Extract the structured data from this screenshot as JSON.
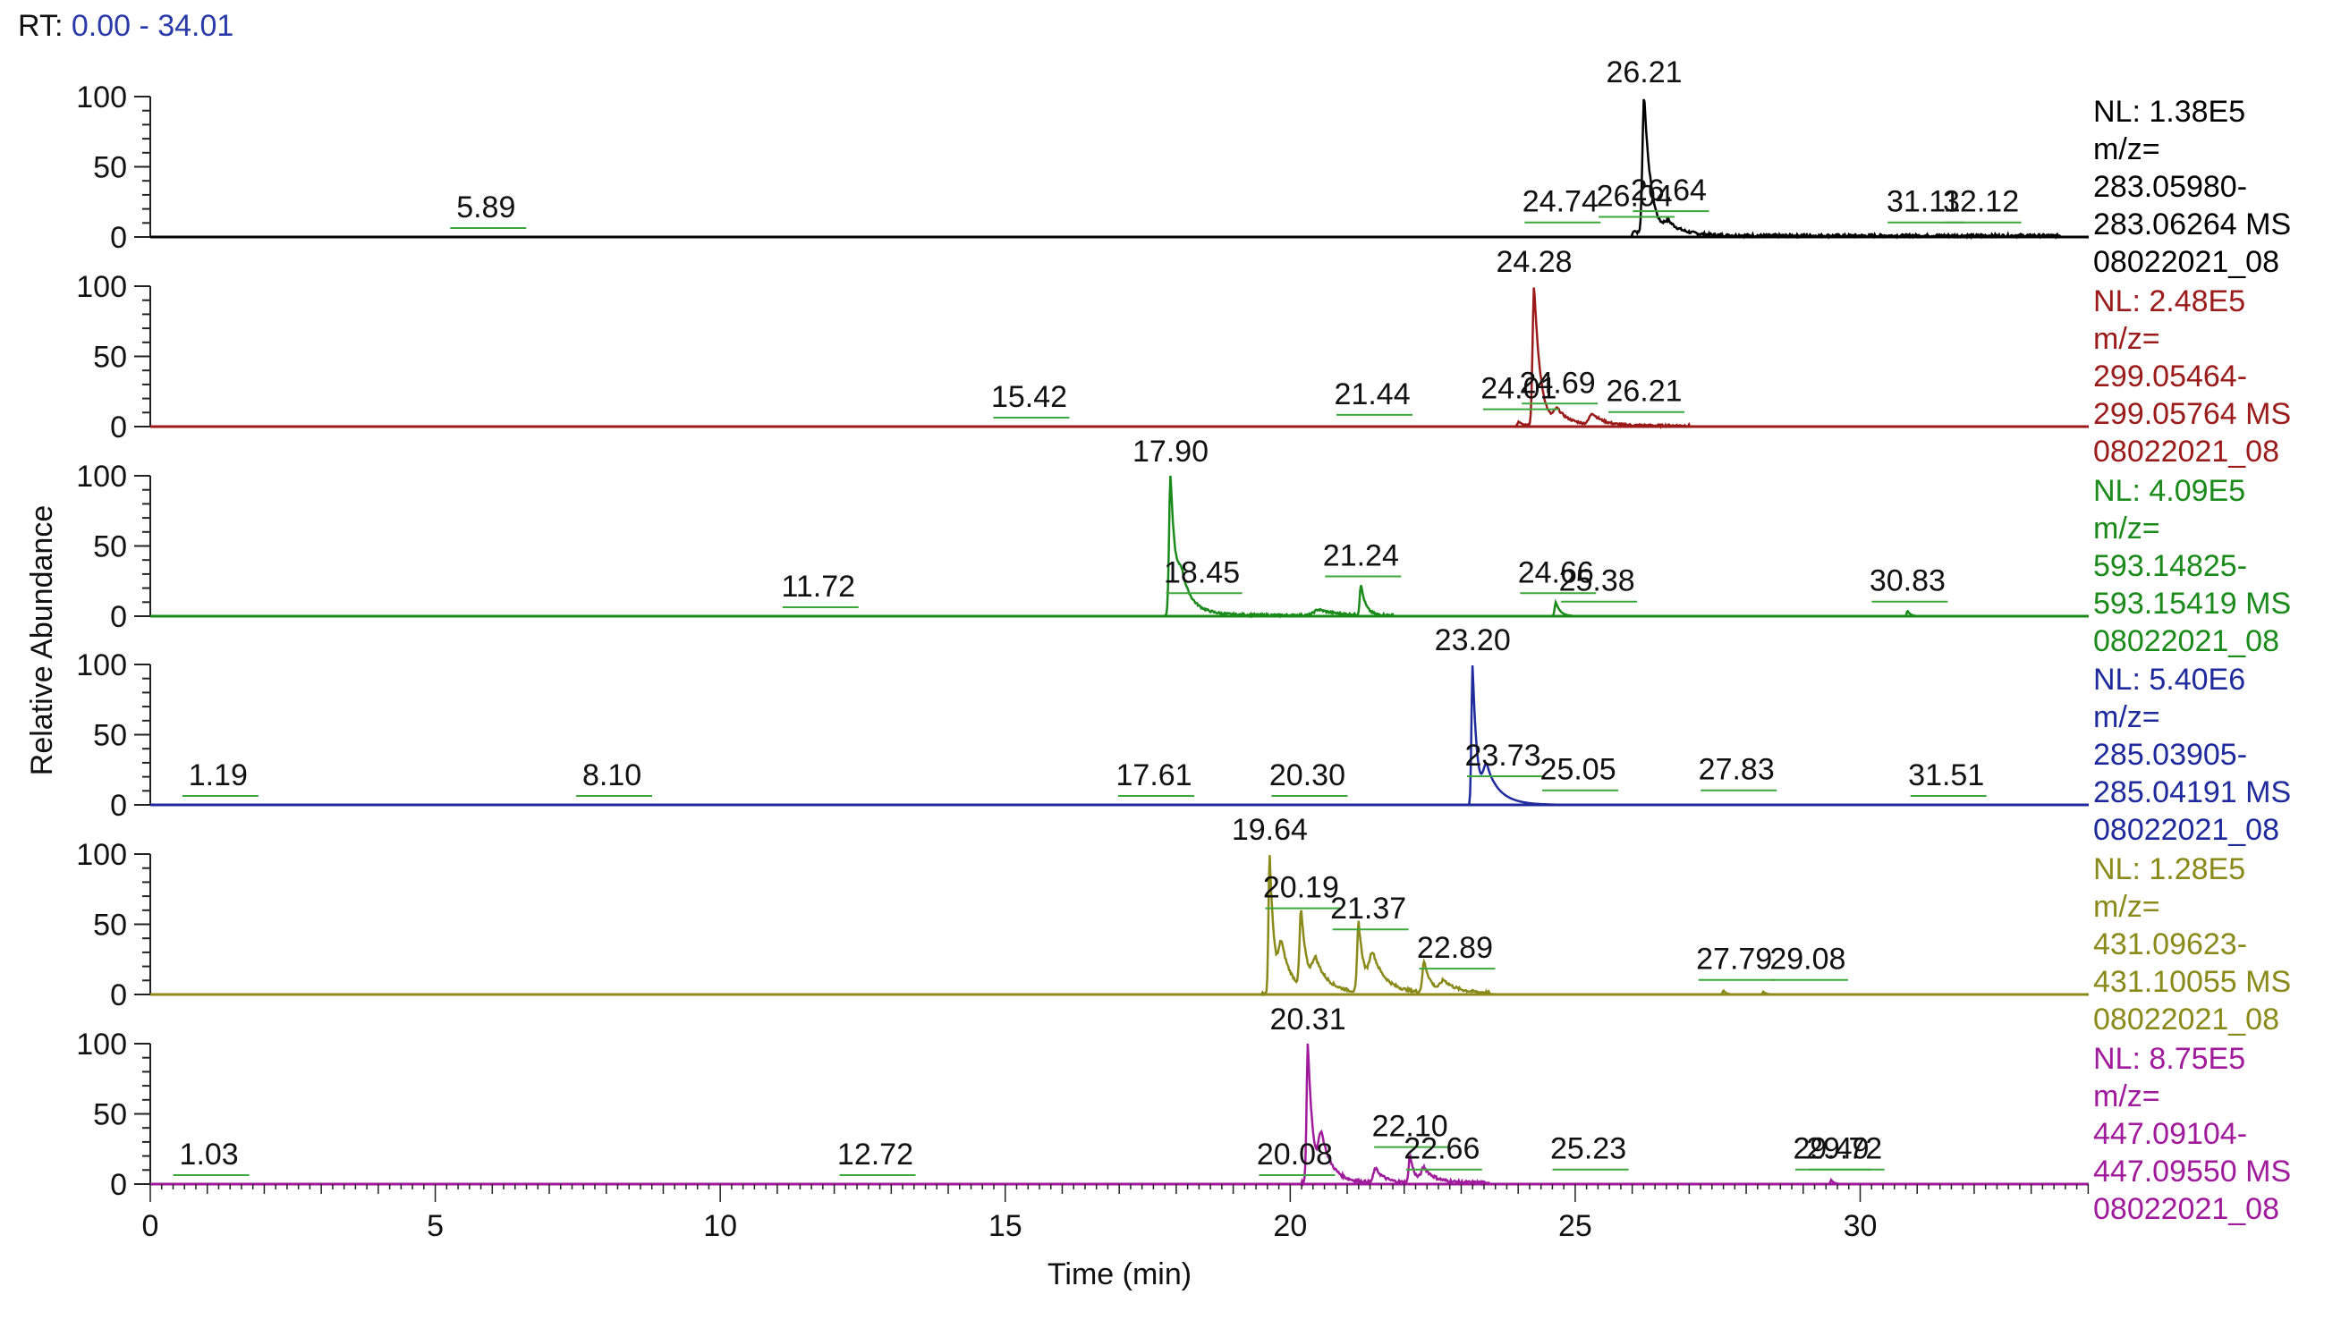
{
  "rt": {
    "label": "RT:",
    "range": "0.00 - 34.01"
  },
  "chart_data": {
    "type": "line",
    "title": "RT: 0.00 - 34.01",
    "xlabel": "Time (min)",
    "ylabel": "Relative Abundance",
    "xlim": [
      0,
      34.01
    ],
    "ylim": [
      0,
      100
    ],
    "x_ticks": [
      0,
      5,
      10,
      15,
      20,
      25,
      30
    ],
    "y_ticks": [
      0,
      50,
      100
    ],
    "panels": [
      {
        "color": "#000000",
        "info": [
          "NL: 1.38E5",
          "m/z=",
          "283.05980-",
          "283.06264  MS",
          "08022021_08"
        ],
        "peaks": [
          [
            26.21,
            100,
            0.12
          ],
          [
            26.64,
            8,
            0.3
          ],
          [
            26.04,
            4,
            0.1
          ]
        ],
        "baseline_noise": [
          [
            26.0,
            33.5,
            2
          ]
        ],
        "labels": [
          {
            "x": 26.21,
            "y": 100,
            "text": "26.21",
            "main": true
          },
          {
            "x": 5.89,
            "y": 0,
            "text": "5.89"
          },
          {
            "x": 24.74,
            "y": 4,
            "text": "24.74"
          },
          {
            "x": 26.04,
            "y": 8,
            "text": "26.04"
          },
          {
            "x": 26.64,
            "y": 12,
            "text": "26.64"
          },
          {
            "x": 31.11,
            "y": 4,
            "text": "31.11"
          },
          {
            "x": 32.12,
            "y": 4,
            "text": "32.12"
          }
        ]
      },
      {
        "color": "#9b1b1b",
        "info": [
          "NL: 2.48E5",
          "m/z=",
          "299.05464-",
          "299.05764  MS",
          "08022021_08"
        ],
        "peaks": [
          [
            24.28,
            100,
            0.11
          ],
          [
            24.69,
            10,
            0.25
          ],
          [
            25.3,
            8,
            0.2
          ],
          [
            24.01,
            3,
            0.1
          ]
        ],
        "baseline_noise": [
          [
            24.0,
            27.0,
            1.5
          ]
        ],
        "labels": [
          {
            "x": 24.28,
            "y": 100,
            "text": "24.28",
            "main": true
          },
          {
            "x": 15.42,
            "y": 0,
            "text": "15.42"
          },
          {
            "x": 21.44,
            "y": 2,
            "text": "21.44"
          },
          {
            "x": 24.01,
            "y": 6,
            "text": "24.01"
          },
          {
            "x": 24.69,
            "y": 10,
            "text": "24.69"
          },
          {
            "x": 26.21,
            "y": 4,
            "text": "26.21"
          }
        ]
      },
      {
        "color": "#1a8a1a",
        "info": [
          "NL: 4.09E5",
          "m/z=",
          "593.14825-",
          "593.15419  MS",
          "08022021_08"
        ],
        "peaks": [
          [
            17.9,
            100,
            0.1
          ],
          [
            18.1,
            20,
            0.25
          ],
          [
            21.24,
            22,
            0.08
          ],
          [
            24.66,
            10,
            0.08
          ],
          [
            20.5,
            4,
            0.3
          ],
          [
            30.83,
            4,
            0.05
          ]
        ],
        "baseline_noise": [
          [
            17.8,
            21.8,
            1.5
          ]
        ],
        "labels": [
          {
            "x": 17.9,
            "y": 100,
            "text": "17.90",
            "main": true
          },
          {
            "x": 11.72,
            "y": 0,
            "text": "11.72"
          },
          {
            "x": 18.45,
            "y": 10,
            "text": "18.45"
          },
          {
            "x": 21.24,
            "y": 22,
            "text": "21.24"
          },
          {
            "x": 24.66,
            "y": 10,
            "text": "24.66"
          },
          {
            "x": 25.38,
            "y": 4,
            "text": "25.38"
          },
          {
            "x": 30.83,
            "y": 4,
            "text": "30.83"
          }
        ]
      },
      {
        "color": "#1f2a9c",
        "info": [
          "NL: 5.40E6",
          "m/z=",
          "285.03905-",
          "285.04191  MS",
          "08022021_08"
        ],
        "peaks": [
          [
            23.2,
            100,
            0.08
          ],
          [
            23.45,
            25,
            0.25
          ]
        ],
        "baseline_noise": [],
        "labels": [
          {
            "x": 23.2,
            "y": 100,
            "text": "23.20",
            "main": true
          },
          {
            "x": 1.19,
            "y": 0,
            "text": "1.19"
          },
          {
            "x": 8.1,
            "y": 0,
            "text": "8.10"
          },
          {
            "x": 17.61,
            "y": 0,
            "text": "17.61"
          },
          {
            "x": 20.3,
            "y": 0,
            "text": "20.30"
          },
          {
            "x": 23.73,
            "y": 14,
            "text": "23.73"
          },
          {
            "x": 25.05,
            "y": 4,
            "text": "25.05"
          },
          {
            "x": 27.83,
            "y": 4,
            "text": "27.83"
          },
          {
            "x": 31.51,
            "y": 0,
            "text": "31.51"
          }
        ]
      },
      {
        "color": "#8a8a1a",
        "info": [
          "NL: 1.28E5",
          "m/z=",
          "431.09623-",
          "431.10055  MS",
          "08022021_08"
        ],
        "peaks": [
          [
            19.64,
            100,
            0.08
          ],
          [
            19.85,
            30,
            0.2
          ],
          [
            20.19,
            55,
            0.1
          ],
          [
            20.45,
            20,
            0.25
          ],
          [
            21.2,
            50,
            0.1
          ],
          [
            21.45,
            25,
            0.25
          ],
          [
            22.35,
            22,
            0.12
          ],
          [
            22.7,
            8,
            0.25
          ],
          [
            27.6,
            3,
            0.05
          ],
          [
            28.3,
            2,
            0.05
          ]
        ],
        "baseline_noise": [
          [
            19.5,
            23.5,
            2
          ]
        ],
        "labels": [
          {
            "x": 19.64,
            "y": 100,
            "text": "19.64",
            "main": true
          },
          {
            "x": 20.19,
            "y": 55,
            "text": "20.19"
          },
          {
            "x": 21.37,
            "y": 40,
            "text": "21.37"
          },
          {
            "x": 22.89,
            "y": 12,
            "text": "22.89"
          },
          {
            "x": 27.79,
            "y": 4,
            "text": "27.79"
          },
          {
            "x": 29.08,
            "y": 4,
            "text": "29.08"
          }
        ]
      },
      {
        "color": "#a01b9c",
        "info": [
          "NL: 8.75E5",
          "m/z=",
          "447.09104-",
          "447.09550  MS",
          "08022021_08"
        ],
        "peaks": [
          [
            20.31,
            100,
            0.09
          ],
          [
            20.55,
            30,
            0.2
          ],
          [
            21.5,
            10,
            0.15
          ],
          [
            22.1,
            20,
            0.08
          ],
          [
            22.35,
            10,
            0.2
          ],
          [
            29.49,
            3,
            0.05
          ]
        ],
        "baseline_noise": [
          [
            20.2,
            23.5,
            2
          ]
        ],
        "labels": [
          {
            "x": 20.31,
            "y": 100,
            "text": "20.31",
            "main": true
          },
          {
            "x": 1.03,
            "y": 0,
            "text": "1.03"
          },
          {
            "x": 12.72,
            "y": 0,
            "text": "12.72"
          },
          {
            "x": 20.08,
            "y": 0,
            "text": "20.08"
          },
          {
            "x": 22.1,
            "y": 20,
            "text": "22.10"
          },
          {
            "x": 22.66,
            "y": 4,
            "text": "22.66"
          },
          {
            "x": 25.23,
            "y": 4,
            "text": "25.23"
          },
          {
            "x": 29.49,
            "y": 4,
            "text": "29.49"
          },
          {
            "x": 29.72,
            "y": 4,
            "text": "29.72"
          }
        ]
      }
    ]
  }
}
